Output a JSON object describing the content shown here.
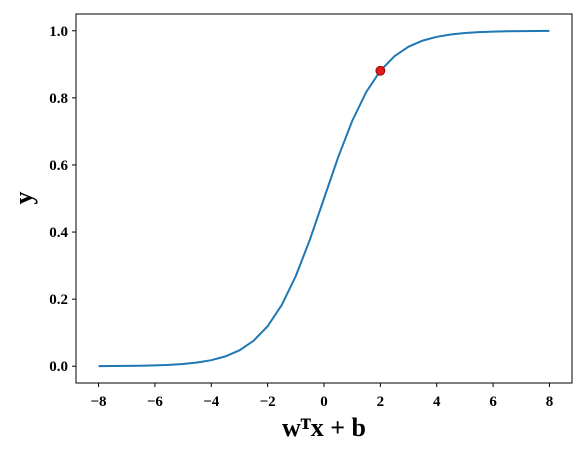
{
  "chart_data": {
    "type": "line",
    "xlabel": "wᵀx + b",
    "ylabel": "y",
    "x": [
      -8,
      -7.5,
      -7,
      -6.5,
      -6,
      -5.5,
      -5,
      -4.5,
      -4,
      -3.5,
      -3,
      -2.5,
      -2,
      -1.5,
      -1,
      -0.5,
      0,
      0.5,
      1,
      1.5,
      2,
      2.5,
      3,
      3.5,
      4,
      4.5,
      5,
      5.5,
      6,
      6.5,
      7,
      7.5,
      8
    ],
    "series": [
      {
        "color": "#1f77b4",
        "values": [
          0.0003,
          0.0006,
          0.0009,
          0.0015,
          0.0025,
          0.0041,
          0.0067,
          0.011,
          0.018,
          0.0293,
          0.0474,
          0.0759,
          0.1192,
          0.1824,
          0.2689,
          0.3775,
          0.5,
          0.6225,
          0.7311,
          0.8176,
          0.8808,
          0.9241,
          0.9526,
          0.9707,
          0.982,
          0.989,
          0.9933,
          0.9959,
          0.9975,
          0.9985,
          0.9991,
          0.9994,
          0.9997
        ]
      }
    ],
    "markers": [
      {
        "x": 2,
        "y": 0.8808,
        "color": "#e31a1c"
      }
    ],
    "xlim": [
      -8.8,
      8.8
    ],
    "ylim": [
      -0.05,
      1.05
    ],
    "xticks": [
      {
        "value": -8,
        "label": "−8"
      },
      {
        "value": -6,
        "label": "−6"
      },
      {
        "value": -4,
        "label": "−4"
      },
      {
        "value": -2,
        "label": "−2"
      },
      0,
      2,
      4,
      6,
      8
    ],
    "yticks": [
      {
        "value": 0,
        "label": "0.0"
      },
      {
        "value": 0.2,
        "label": "0.2"
      },
      {
        "value": 0.4,
        "label": "0.4"
      },
      {
        "value": 0.6,
        "label": "0.6"
      },
      {
        "value": 0.8,
        "label": "0.8"
      },
      {
        "value": 1,
        "label": "1.0"
      }
    ]
  }
}
